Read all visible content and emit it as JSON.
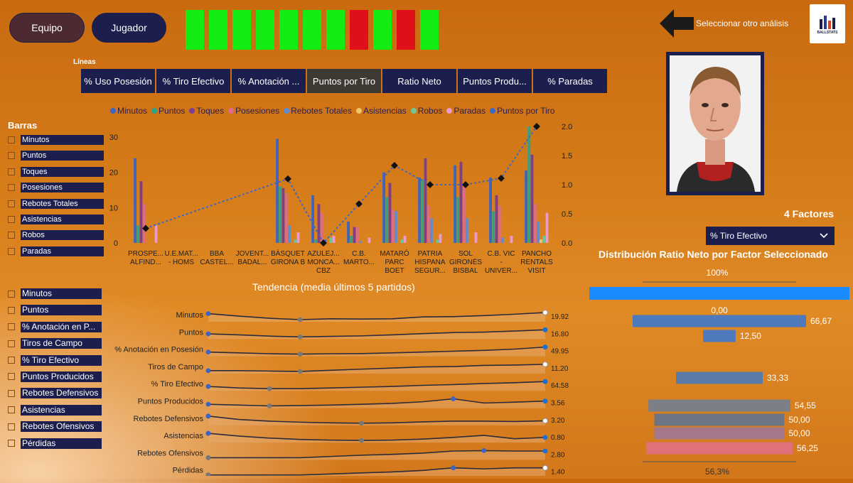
{
  "header": {
    "equipo_label": "Equipo",
    "jugador_label": "Jugador",
    "results": [
      "green",
      "green",
      "green",
      "green",
      "green",
      "green",
      "green",
      "red",
      "green",
      "red",
      "green"
    ],
    "colors": {
      "green": "#12ec12",
      "red": "#e0101a",
      "navy": "#1c1f4d"
    },
    "otro_label": "Seleccionar otro análisis",
    "logo_icon": "ballstats-logo",
    "logo_text": "BALLSTATS"
  },
  "lineas": {
    "title": "Líneas",
    "buttons": [
      "% Uso Posesión",
      "% Tiro Efectivo",
      "% Anotación ...",
      "Puntos por Tiro",
      "Ratio Neto",
      "Puntos Produ...",
      "% Paradas"
    ],
    "active": "Puntos por Tiro"
  },
  "barras": {
    "title": "Barras",
    "items": [
      "Minutos",
      "Puntos",
      "Toques",
      "Posesiones",
      "Rebotes Totales",
      "Asistencias",
      "Robos",
      "Paradas"
    ]
  },
  "trend_filters": {
    "items": [
      "Minutos",
      "Puntos",
      "% Anotación en P...",
      "Tiros de Campo",
      "% Tiro Efectivo",
      "Puntos Producidos",
      "Rebotes Defensivos",
      "Asistencias",
      "Rebotes Ofensivos",
      "Pérdidas"
    ]
  },
  "chart_data": [
    {
      "type": "bar",
      "title": "",
      "legend_position": "top",
      "categories": [
        "PROSPE... ALFIND...",
        "U.E.MAT... - HOMS",
        "BBA CASTEL...",
        "JOVENT... BADAL...",
        "BÀSQUET GIRONA B",
        "AZULEJ... MONCA... CBZ",
        "C.B. MARTO...",
        "MATARÓ PARC BOET",
        "PATRIA HISPANA SEGUR...",
        "SOL GIRONÈS BISBAL ...",
        "C.B. VIC - UNIVER... DE VIC",
        "PANCHO RENTALS VISIT C..."
      ],
      "yticks_left": [
        "0",
        "10",
        "20",
        "30"
      ],
      "yticks_right": [
        "0.0",
        "0.5",
        "1.0",
        "1.5",
        "2.0"
      ],
      "ylim_left": [
        0,
        33
      ],
      "ylim_right": [
        0,
        2.0
      ],
      "series": [
        {
          "name": "Minutos",
          "color": "#3b64c4",
          "values": [
            24,
            0,
            0,
            0,
            29.5,
            13.5,
            6,
            20,
            18.5,
            22,
            18.5,
            20.5
          ]
        },
        {
          "name": "Puntos",
          "color": "#2aa48a",
          "values": [
            5,
            0,
            0,
            0,
            16,
            1,
            2,
            13,
            18,
            13,
            9,
            33
          ]
        },
        {
          "name": "Toques",
          "color": "#7b3d96",
          "values": [
            17.5,
            0,
            0,
            0,
            15.5,
            11,
            4.5,
            17,
            24,
            23,
            13.5,
            25
          ]
        },
        {
          "name": "Posesiones",
          "color": "#dd6b8f",
          "values": [
            11,
            0,
            0,
            0,
            14,
            8.5,
            4.5,
            9.5,
            10.5,
            16,
            10.5,
            11
          ]
        },
        {
          "name": "Rebotes Totales",
          "color": "#5b8dd6",
          "values": [
            0,
            0,
            0,
            0,
            5,
            1,
            0.5,
            9,
            7,
            7,
            1.5,
            6
          ]
        },
        {
          "name": "Asistencias",
          "color": "#f2c56b",
          "values": [
            0,
            0,
            0,
            0,
            0,
            0,
            0,
            0,
            0,
            0,
            0,
            1
          ]
        },
        {
          "name": "Robos",
          "color": "#6cc797",
          "values": [
            0,
            0,
            0,
            0,
            1,
            1.5,
            0,
            1,
            1,
            0,
            0,
            2
          ]
        },
        {
          "name": "Paradas",
          "color": "#ee9ac9",
          "values": [
            5,
            0,
            0,
            0,
            3,
            2,
            1.5,
            2,
            2.5,
            3,
            2,
            8.5
          ]
        },
        {
          "name": "Puntos por Tiro",
          "color": "#3a68c9",
          "axis": "right",
          "line": true,
          "values": [
            0.25,
            null,
            null,
            null,
            1.1,
            0.0,
            0.67,
            1.33,
            1.0,
            1.0,
            1.11,
            2.0
          ]
        }
      ]
    },
    {
      "type": "line",
      "title": "Tendencia (media últimos 5 partidos)",
      "series": [
        {
          "name": "Minutos",
          "last": "19.92",
          "values": [
            19.5,
            18.6,
            17.8,
            17.3,
            17.6,
            17.5,
            17.6,
            18.3,
            18.4,
            18.8,
            19.3,
            19.92
          ]
        },
        {
          "name": "Puntos",
          "last": "16.80",
          "values": [
            15.2,
            14.8,
            14.3,
            14.0,
            14.2,
            14.4,
            14.8,
            15.3,
            15.7,
            15.9,
            16.3,
            16.8
          ]
        },
        {
          "name": "% Anotación en Posesión",
          "last": "49.95",
          "values": [
            44,
            43,
            42,
            41.5,
            42,
            42.2,
            43,
            44,
            45,
            46,
            47.5,
            49.95
          ]
        },
        {
          "name": "Tiros de Campo",
          "last": "11.20",
          "values": [
            9.5,
            9.5,
            9.4,
            9.3,
            9.6,
            9.9,
            10.2,
            10.5,
            10.6,
            10.9,
            11.0,
            11.2
          ]
        },
        {
          "name": "% Tiro Efectivo",
          "last": "64.58",
          "values": [
            58,
            56,
            55,
            55,
            56,
            57,
            58,
            59.5,
            60.5,
            62,
            63,
            64.58
          ]
        },
        {
          "name": "Puntos Producidos",
          "last": "3.56",
          "values": [
            2.8,
            2.6,
            2.4,
            2.5,
            2.6,
            2.8,
            3.0,
            3.4,
            4.1,
            3.1,
            3.3,
            3.56
          ]
        },
        {
          "name": "Rebotes Defensivos",
          "last": "3.20",
          "values": [
            4.6,
            3.6,
            3.1,
            2.8,
            2.6,
            2.5,
            2.6,
            2.9,
            3.1,
            3.1,
            3.0,
            3.2
          ]
        },
        {
          "name": "Asistencias",
          "last": "0.80",
          "values": [
            1.4,
            1.0,
            0.7,
            0.5,
            0.4,
            0.35,
            0.4,
            0.55,
            0.8,
            1.1,
            0.6,
            0.8
          ]
        },
        {
          "name": "Rebotes Ofensivos",
          "last": "2.80",
          "values": [
            1.2,
            1.2,
            1.2,
            1.2,
            1.5,
            1.8,
            2.0,
            2.3,
            2.8,
            2.9,
            2.8,
            2.8
          ]
        },
        {
          "name": "Pérdidas",
          "last": "1.40",
          "values": [
            0.7,
            0.7,
            0.7,
            0.7,
            0.8,
            0.9,
            1.0,
            1.15,
            1.4,
            1.3,
            1.4,
            1.4
          ]
        }
      ]
    },
    {
      "type": "bar",
      "title": "Distribución Ratio Neto por Factor Seleccionado",
      "top_label": "100%",
      "bottom_label": "56,3%",
      "bars": [
        {
          "value": 100,
          "label": "",
          "color": "#1a8cff"
        },
        {
          "value": 0,
          "label": "0,00",
          "color": "#3b64c4"
        },
        {
          "value": 66.67,
          "label": "66,67",
          "color": "#4f79bd"
        },
        {
          "value": 12.5,
          "label": "12,50",
          "color": "#4f79bd"
        },
        {
          "value": 33.33,
          "label": "33,33",
          "color": "#5a7aa8"
        },
        {
          "value": 54.55,
          "label": "54,55",
          "color": "#7d7f86"
        },
        {
          "value": 50.0,
          "label": "50,00",
          "color": "#6d7482"
        },
        {
          "value": 50.0,
          "label": "50,00",
          "color": "#a4788a"
        },
        {
          "value": 56.25,
          "label": "56,25",
          "color": "#e0707a"
        }
      ]
    }
  ],
  "factores": {
    "title": "4 Factores",
    "selected": "% Tiro Efectivo",
    "dist_title": "Distribución Ratio Neto por Factor Seleccionado"
  }
}
